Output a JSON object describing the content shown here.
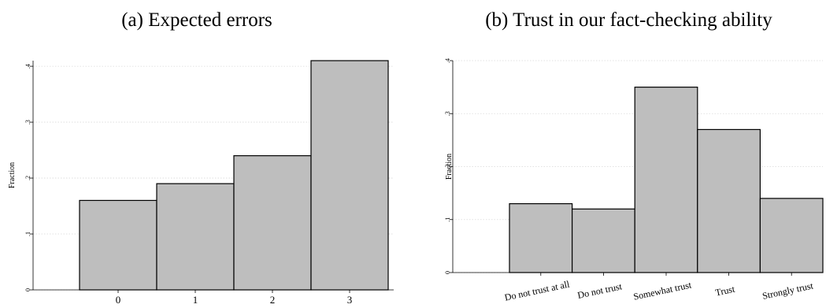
{
  "chart_data": [
    {
      "type": "bar",
      "title": "(a) Expected errors",
      "xlabel": "",
      "ylabel": "Fraction",
      "categories": [
        "0",
        "1",
        "2",
        "3"
      ],
      "values": [
        0.16,
        0.19,
        0.24,
        0.41
      ],
      "ylim": [
        0,
        0.41
      ],
      "yticks": [
        0,
        0.1,
        0.2,
        0.3,
        0.4
      ],
      "ytick_labels": [
        "0",
        ".1",
        ".2",
        ".3",
        ".4"
      ],
      "grid": true,
      "bar_color": "#bebebe"
    },
    {
      "type": "bar",
      "title": "(b) Trust in our fact-checking ability",
      "xlabel": "",
      "ylabel": "Fraction",
      "categories": [
        "Do not trust at all",
        "Do not trust",
        "Somewhat trust",
        "Trust",
        "Strongly trust"
      ],
      "values": [
        0.13,
        0.12,
        0.35,
        0.27,
        0.14
      ],
      "ylim": [
        0,
        0.4
      ],
      "yticks": [
        0,
        0.1,
        0.2,
        0.3,
        0.4
      ],
      "ytick_labels": [
        "0",
        ".1",
        ".2",
        ".3",
        ".4"
      ],
      "grid": true,
      "bar_color": "#bebebe"
    }
  ]
}
